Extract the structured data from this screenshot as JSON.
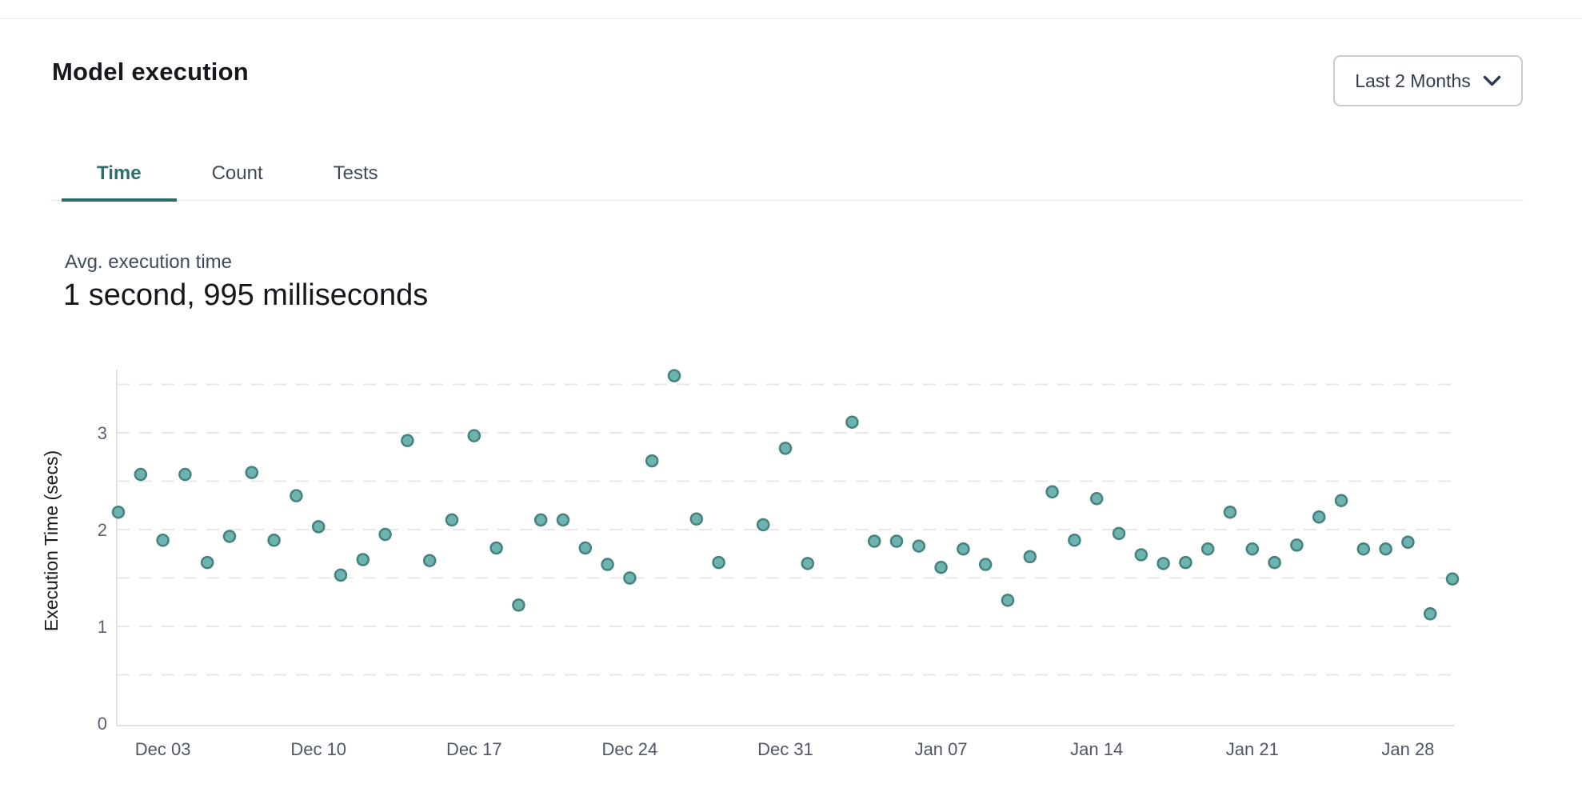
{
  "header": {
    "title": "Model execution",
    "range_selector": {
      "label": "Last 2 Months"
    }
  },
  "tabs": [
    {
      "label": "Time",
      "active": true
    },
    {
      "label": "Count",
      "active": false
    },
    {
      "label": "Tests",
      "active": false
    }
  ],
  "summary": {
    "label": "Avg. execution time",
    "value": "1 second, 995 milliseconds"
  },
  "colors": {
    "accent_teal": "#2c6e6c",
    "point_fill": "#6db4b0",
    "point_stroke": "#45827e",
    "grid_line": "#e7e8ec",
    "axis_line": "#dfe1e5",
    "tick_text": "#4e5766",
    "y_tick_text": "#586273",
    "axis_title_text": "#16191e"
  },
  "chart_data": {
    "type": "scatter",
    "title": "",
    "xlabel": "",
    "ylabel": "Execution Time (secs)",
    "x_tick_labels": [
      "Dec 03",
      "Dec 10",
      "Dec 17",
      "Dec 24",
      "Dec 31",
      "Jan 07",
      "Jan 14",
      "Jan 21",
      "Jan 28"
    ],
    "y_ticks": [
      0,
      1,
      2,
      3
    ],
    "ylim": [
      0,
      3.65
    ],
    "grid": "horizontal dashed lines every 0.5 secs",
    "legend": "none",
    "points": [
      {
        "date": "Dec 01",
        "secs": 2.18
      },
      {
        "date": "Dec 02",
        "secs": 2.57
      },
      {
        "date": "Dec 03",
        "secs": 1.89
      },
      {
        "date": "Dec 04",
        "secs": 2.57
      },
      {
        "date": "Dec 05",
        "secs": 1.66
      },
      {
        "date": "Dec 06",
        "secs": 1.93
      },
      {
        "date": "Dec 07",
        "secs": 2.59
      },
      {
        "date": "Dec 08",
        "secs": 1.89
      },
      {
        "date": "Dec 09",
        "secs": 2.35
      },
      {
        "date": "Dec 10",
        "secs": 2.03
      },
      {
        "date": "Dec 11",
        "secs": 1.53
      },
      {
        "date": "Dec 12",
        "secs": 1.69
      },
      {
        "date": "Dec 13",
        "secs": 1.95
      },
      {
        "date": "Dec 14",
        "secs": 2.92
      },
      {
        "date": "Dec 15",
        "secs": 1.68
      },
      {
        "date": "Dec 16",
        "secs": 2.1
      },
      {
        "date": "Dec 17",
        "secs": 2.97
      },
      {
        "date": "Dec 18",
        "secs": 1.81
      },
      {
        "date": "Dec 19",
        "secs": 1.22
      },
      {
        "date": "Dec 20",
        "secs": 2.1
      },
      {
        "date": "Dec 21",
        "secs": 2.1
      },
      {
        "date": "Dec 22",
        "secs": 1.81
      },
      {
        "date": "Dec 23",
        "secs": 1.64
      },
      {
        "date": "Dec 24",
        "secs": 1.5
      },
      {
        "date": "Dec 25",
        "secs": 2.71
      },
      {
        "date": "Dec 26",
        "secs": 3.59
      },
      {
        "date": "Dec 27",
        "secs": 2.11
      },
      {
        "date": "Dec 28",
        "secs": 1.66
      },
      {
        "date": "Dec 30",
        "secs": 2.05
      },
      {
        "date": "Dec 31",
        "secs": 2.84
      },
      {
        "date": "Jan 01",
        "secs": 1.65
      },
      {
        "date": "Jan 03",
        "secs": 3.11
      },
      {
        "date": "Jan 04",
        "secs": 1.88
      },
      {
        "date": "Jan 05",
        "secs": 1.88
      },
      {
        "date": "Jan 06",
        "secs": 1.83
      },
      {
        "date": "Jan 07",
        "secs": 1.61
      },
      {
        "date": "Jan 08",
        "secs": 1.8
      },
      {
        "date": "Jan 09",
        "secs": 1.64
      },
      {
        "date": "Jan 10",
        "secs": 1.27
      },
      {
        "date": "Jan 11",
        "secs": 1.72
      },
      {
        "date": "Jan 12",
        "secs": 2.39
      },
      {
        "date": "Jan 13",
        "secs": 1.89
      },
      {
        "date": "Jan 14",
        "secs": 2.32
      },
      {
        "date": "Jan 15",
        "secs": 1.96
      },
      {
        "date": "Jan 16",
        "secs": 1.74
      },
      {
        "date": "Jan 17",
        "secs": 1.65
      },
      {
        "date": "Jan 18",
        "secs": 1.66
      },
      {
        "date": "Jan 19",
        "secs": 1.8
      },
      {
        "date": "Jan 20",
        "secs": 2.18
      },
      {
        "date": "Jan 21",
        "secs": 1.8
      },
      {
        "date": "Jan 22",
        "secs": 1.66
      },
      {
        "date": "Jan 23",
        "secs": 1.84
      },
      {
        "date": "Jan 24",
        "secs": 2.13
      },
      {
        "date": "Jan 25",
        "secs": 2.3
      },
      {
        "date": "Jan 26",
        "secs": 1.8
      },
      {
        "date": "Jan 27",
        "secs": 1.8
      },
      {
        "date": "Jan 28",
        "secs": 1.87
      },
      {
        "date": "Jan 29",
        "secs": 1.13
      },
      {
        "date": "Jan 30",
        "secs": 1.49
      }
    ]
  }
}
